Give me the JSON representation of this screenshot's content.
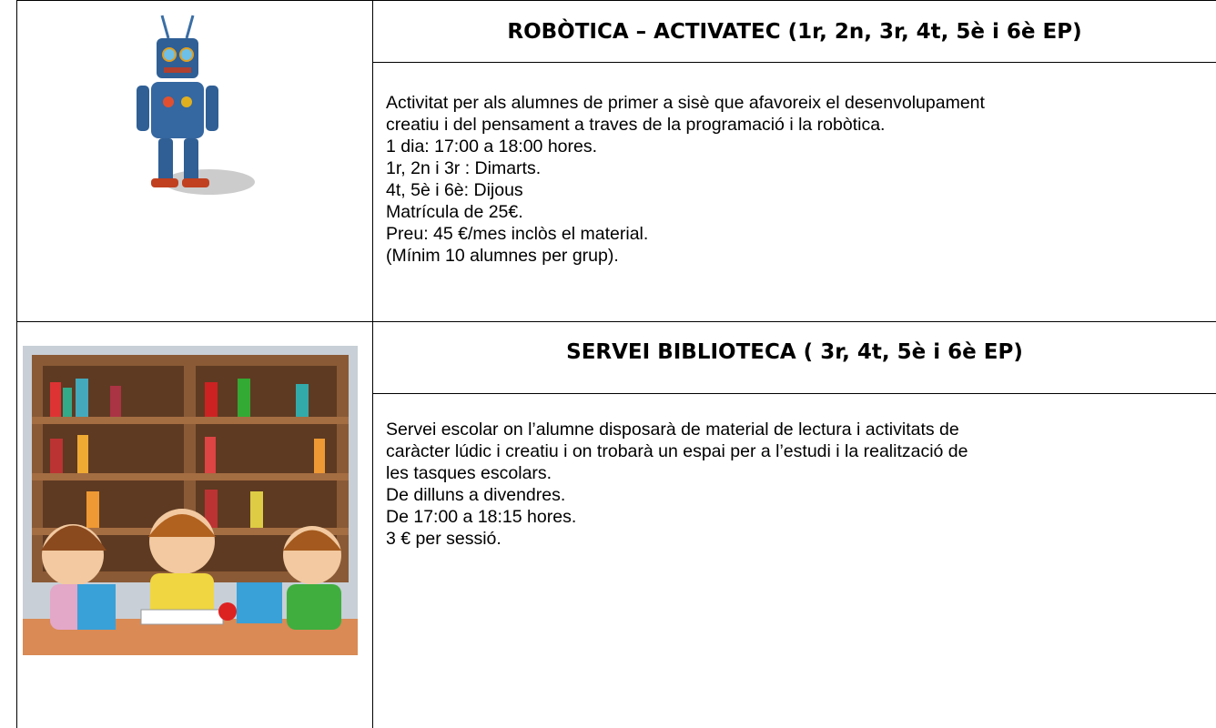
{
  "sections": [
    {
      "title": "ROBÒTICA – ACTIVATEC (1r, 2n, 3r, 4t, 5è i 6è EP)",
      "lines": [
        "Activitat per als alumnes de primer a sisè que afavoreix el desenvolupament",
        "creatiu i del pensament a traves de la programació i la robòtica.",
        "1 dia: 17:00 a 18:00 hores.",
        "1r, 2n i 3r : Dimarts.",
        "4t, 5è i 6è: Dijous",
        "Matrícula de 25€.",
        "Preu: 45 €/mes inclòs el material.",
        "(Mínim 10 alumnes per grup)."
      ]
    },
    {
      "title": "SERVEI BIBLIOTECA ( 3r, 4t, 5è i 6è EP)",
      "lines": [
        "Servei escolar on l’alumne disposarà de material de lectura i activitats de",
        "caràcter lúdic i creatiu i on trobarà un espai per a l’estudi i la realització de",
        "les tasques escolars.",
        "De dilluns a divendres.",
        "De 17:00 a 18:15 hores.",
        "3 € per sessió."
      ]
    }
  ]
}
